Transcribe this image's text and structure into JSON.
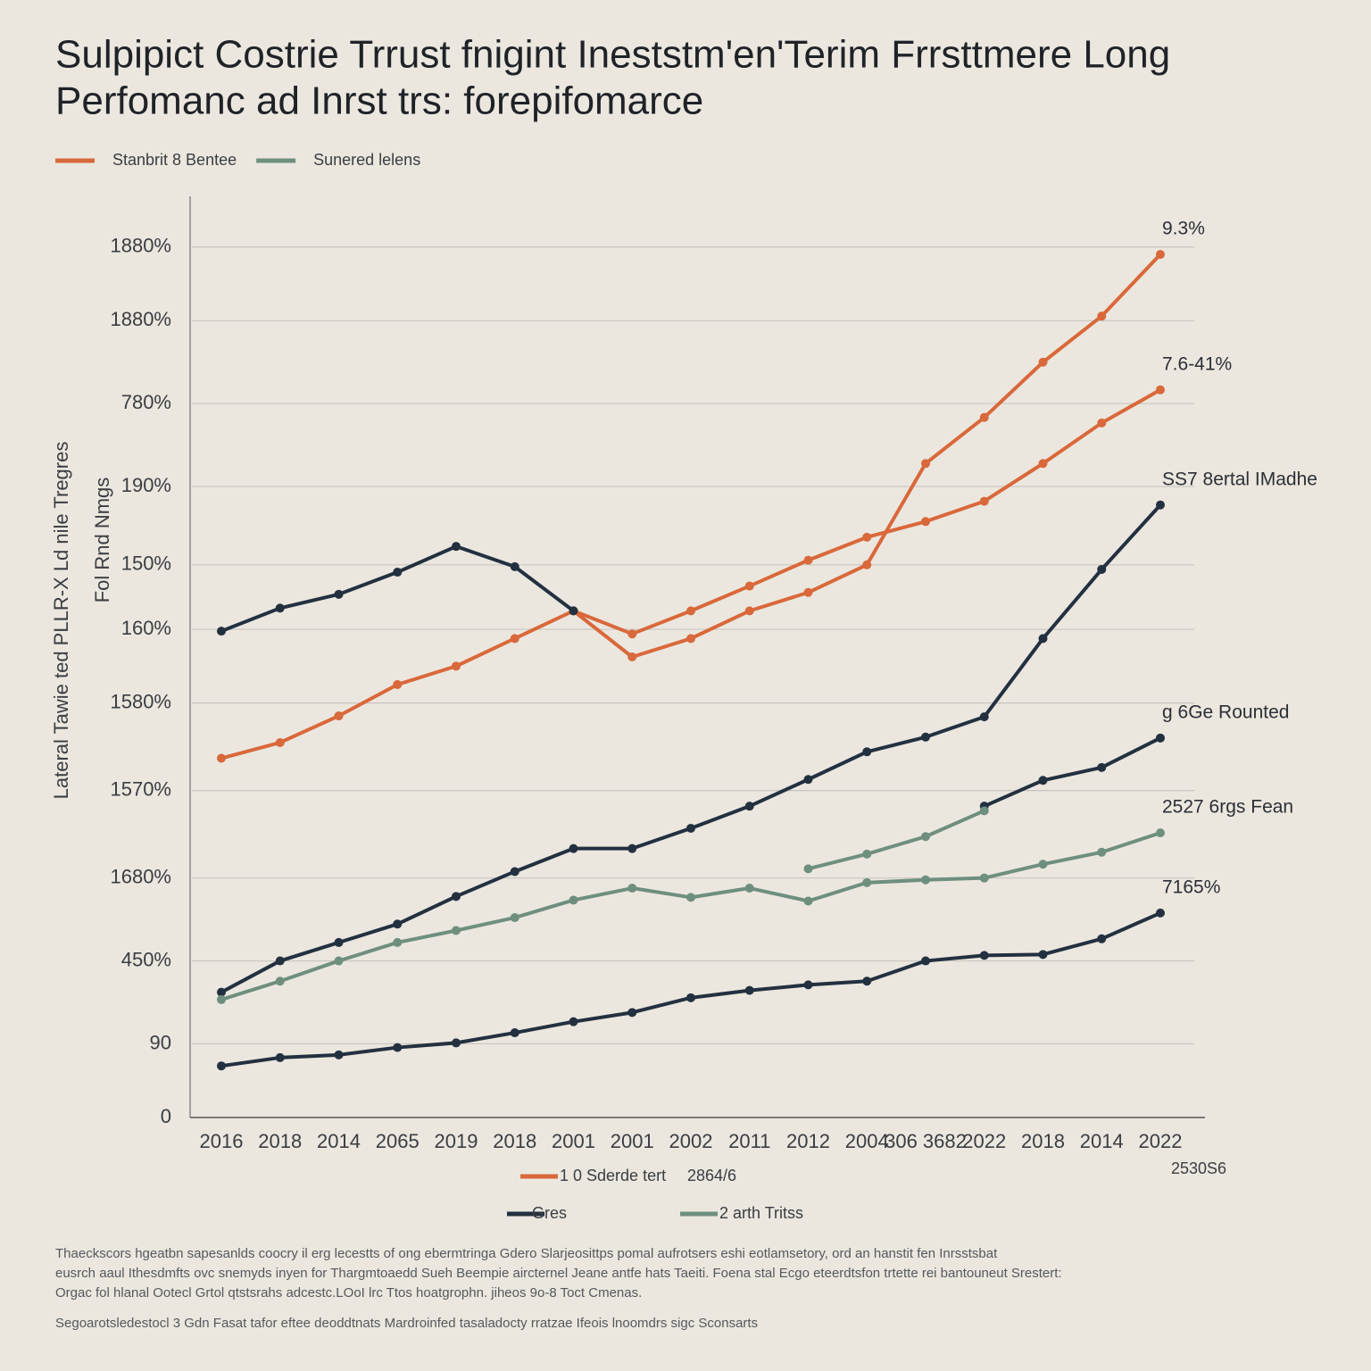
{
  "chart_data": {
    "type": "line",
    "title": [
      "Sulpipict Costrie Trrust fnigint Ineststm'en'Terim Frrsttmere Long",
      "Perfomanc ad Inrst trs: forepifomarce"
    ],
    "ylabel": [
      "Lateral Tawie ted PLLR-X Ld nile Tregres",
      "Fol Rnd Nmgs"
    ],
    "categories": [
      "2016",
      "2018",
      "2014",
      "2065",
      "2019",
      "2018",
      "2001",
      "2001",
      "2002",
      "2011",
      "2012",
      "2004",
      "306 3682",
      "2022",
      "2018",
      "2014",
      "2022"
    ],
    "ylim": [
      0,
      100
    ],
    "yticks": [
      0,
      {
        "value": 8,
        "label": "90"
      },
      {
        "value": 17,
        "label": "450%"
      },
      {
        "value": 26,
        "label": "1680%"
      },
      {
        "value": 35.5,
        "label": "1570%"
      },
      {
        "value": 45,
        "label": "1580%"
      },
      {
        "value": 53,
        "label": "160%"
      },
      {
        "value": 60,
        "label": "150%"
      },
      {
        "value": 68.5,
        "label": "190%"
      },
      {
        "value": 77.5,
        "label": "780%"
      },
      {
        "value": 86.5,
        "label": "1880%"
      },
      {
        "value": 94.5,
        "label": "1880%"
      }
    ],
    "grid": true,
    "series": [
      {
        "name": "Stanbrit 8 Bentee",
        "legend": "top",
        "color": "#d9683a",
        "end_label": "9.3%",
        "values": [
          39,
          40.7,
          43.6,
          47,
          49,
          52,
          55,
          50,
          52,
          55,
          57,
          60,
          71,
          76,
          82,
          87,
          93.7
        ]
      },
      {
        "name": "1 0 Sderde tert",
        "legend": "bottom",
        "color": "#d9683a",
        "end_label": "7.6-41%",
        "values": [
          null,
          null,
          null,
          null,
          null,
          null,
          55,
          52.5,
          55,
          57.7,
          60.5,
          63,
          64.7,
          66.9,
          71,
          75.4,
          79
        ]
      },
      {
        "color": "#233040",
        "values": [
          52.8,
          55.3,
          56.8,
          59.2,
          62,
          59.8,
          55,
          null,
          null,
          null,
          null,
          null,
          null,
          null,
          null,
          null,
          null
        ]
      },
      {
        "name": "Gres",
        "legend": "bottom",
        "color": "#233040",
        "end_label": "SS7 8ertal IMadhe",
        "values": [
          13.6,
          17,
          19,
          21,
          24,
          26.7,
          29.2,
          29.2,
          31.4,
          33.8,
          36.7,
          39.7,
          41.3,
          43.5,
          52,
          59.5,
          66.5
        ]
      },
      {
        "color": "#233040",
        "end_label": "g 6Ge Rounted",
        "values": [
          null,
          null,
          null,
          null,
          null,
          null,
          null,
          null,
          null,
          null,
          null,
          null,
          null,
          33.8,
          36.6,
          38,
          41.2
        ]
      },
      {
        "color": "#233040",
        "end_label": "7165%",
        "values": [
          5.6,
          6.5,
          6.8,
          7.6,
          8.1,
          9.2,
          10.4,
          11.4,
          13,
          13.8,
          14.4,
          14.8,
          17,
          17.6,
          17.7,
          19.4,
          22.2
        ]
      },
      {
        "name": "Sunered lelens",
        "legend": "top",
        "color": "#6f8f7e",
        "end_label": "2527 6rgs Fean",
        "values": [
          12.8,
          14.8,
          17,
          19,
          20.3,
          21.7,
          23.6,
          24.9,
          23.9,
          24.9,
          23.5,
          25.5,
          25.8,
          26,
          27.5,
          28.8,
          30.9
        ]
      },
      {
        "name": "2 arth Tritss",
        "legend": "bottom",
        "color": "#6f8f7e",
        "values": [
          null,
          null,
          null,
          null,
          null,
          null,
          null,
          null,
          null,
          null,
          27,
          28.6,
          30.5,
          33.3,
          null,
          null,
          null
        ]
      }
    ],
    "annotations": [
      "2864/6",
      "2530S6"
    ],
    "footnote": [
      "Thaeckscors hgeatbn sapesanlds coocry il erg lecestts of ong ebermtringa Gdero Slarjeosittps pomal aufrotsers eshi eotlamsetory, ord an hanstit fen Inrsstsbat",
      "eusrch aaul Ithesdmfts ovc snemyds inyen for Thargmtoaedd Sueh Beempie aircternel Jeane antfe hats Taeiti. Foena stal Ecgo eteerdtsfon trtette rei bantouneut Srestert:",
      "Orgac fol hlanal Ootecl Grtol qtstsrahs adcestc.LOoI lrc Ttos hoatgrophn. jiheos 9o-8 Toct Cmenas.",
      "Segoarotsledestocl 3 Gdn Fasat tafor eftee deoddtnats Mardroinfed tasaladocty rratzae Ifeois lnoomdrs sigc Sconsarts"
    ]
  }
}
